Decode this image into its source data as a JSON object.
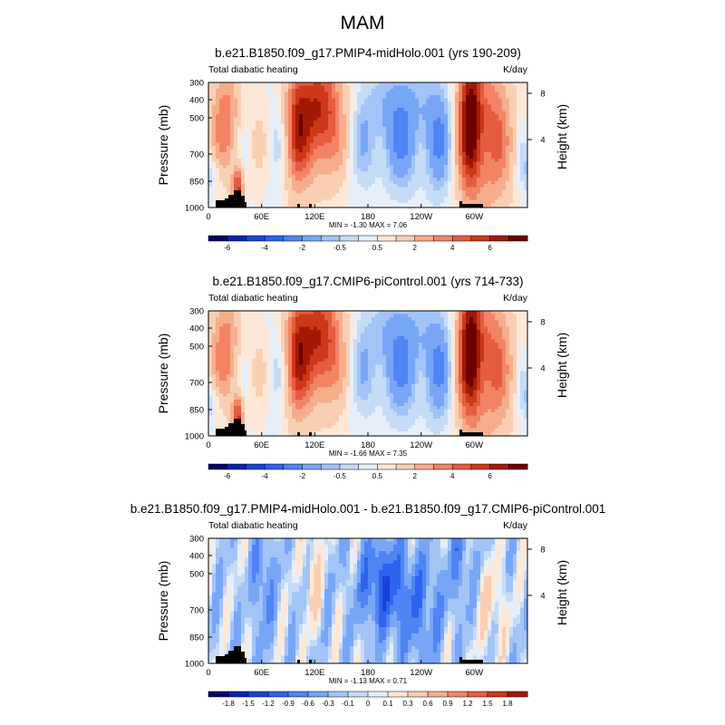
{
  "figure": {
    "main_title": "MAM"
  },
  "chart_data": [
    {
      "type": "heatmap",
      "title": "b.e21.B1850.f09_g17.PMIP4-midHolo.001 (yrs 190-209)",
      "left_label": "Total diabatic heating",
      "right_label": "K/day",
      "ylabel": "Pressure (mb)",
      "y2label": "Height (km)",
      "x_ticks": [
        "0",
        "60E",
        "120E",
        "180",
        "120W",
        "60W"
      ],
      "y_ticks": [
        "300",
        "400",
        "500",
        "700",
        "850",
        "1000"
      ],
      "y2_ticks": [
        "8",
        "4"
      ],
      "stats": "MIN =  -1.30  MAX =   7.06",
      "colorbar_labels": [
        "-6",
        "-4",
        "-2",
        "-0.5",
        "0.5",
        "2",
        "4",
        "6"
      ],
      "min": -1.3,
      "max": 7.06
    },
    {
      "type": "heatmap",
      "title": "b.e21.B1850.f09_g17.CMIP6-piControl.001 (yrs 714-733)",
      "left_label": "Total diabatic heating",
      "right_label": "K/day",
      "ylabel": "Pressure (mb)",
      "y2label": "Height (km)",
      "x_ticks": [
        "0",
        "60E",
        "120E",
        "180",
        "120W",
        "60W"
      ],
      "y_ticks": [
        "300",
        "400",
        "500",
        "700",
        "850",
        "1000"
      ],
      "y2_ticks": [
        "8",
        "4"
      ],
      "stats": "MIN =  -1.66  MAX =   7.35",
      "colorbar_labels": [
        "-6",
        "-4",
        "-2",
        "-0.5",
        "0.5",
        "2",
        "4",
        "6"
      ],
      "min": -1.66,
      "max": 7.35
    },
    {
      "type": "heatmap",
      "title": "b.e21.B1850.f09_g17.PMIP4-midHolo.001 - b.e21.B1850.f09_g17.CMIP6-piControl.001",
      "left_label": "Total diabatic heating",
      "right_label": "K/day",
      "ylabel": "Pressure (mb)",
      "y2label": "Height (km)",
      "x_ticks": [
        "0",
        "60E",
        "120E",
        "180",
        "120W",
        "60W"
      ],
      "y_ticks": [
        "300",
        "400",
        "500",
        "700",
        "850",
        "1000"
      ],
      "y2_ticks": [
        "8",
        "4"
      ],
      "stats": "MIN =  -1.13  MAX =   0.71",
      "colorbar_labels": [
        "-1.8",
        "-1.5",
        "-1.2",
        "-0.9",
        "-0.6",
        "-0.3",
        "-0.1",
        "0",
        "0.1",
        "0.3",
        "0.6",
        "0.9",
        "1.2",
        "1.5",
        "1.8"
      ],
      "min": -1.13,
      "max": 0.71
    }
  ],
  "colors": {
    "colorbar_abs": [
      "#08006b",
      "#0a23b0",
      "#1843d8",
      "#2e63ef",
      "#4f84f5",
      "#78a6f7",
      "#a2c4f7",
      "#c6dbf6",
      "#e6eff9",
      "#fde8d8",
      "#f9cfb3",
      "#f6ad8b",
      "#f28465",
      "#e55c40",
      "#cd3818",
      "#a11904",
      "#6d0000"
    ],
    "colorbar_diff": [
      "#08006b",
      "#0a23b0",
      "#1843d8",
      "#2e63ef",
      "#4f84f5",
      "#78a6f7",
      "#a2c4f7",
      "#c6dbf6",
      "#e6eff9",
      "#fde8d8",
      "#f9cfb3",
      "#f6ad8b",
      "#f28465",
      "#e55c40",
      "#cd3818",
      "#a11904"
    ],
    "topography": "#000000"
  }
}
